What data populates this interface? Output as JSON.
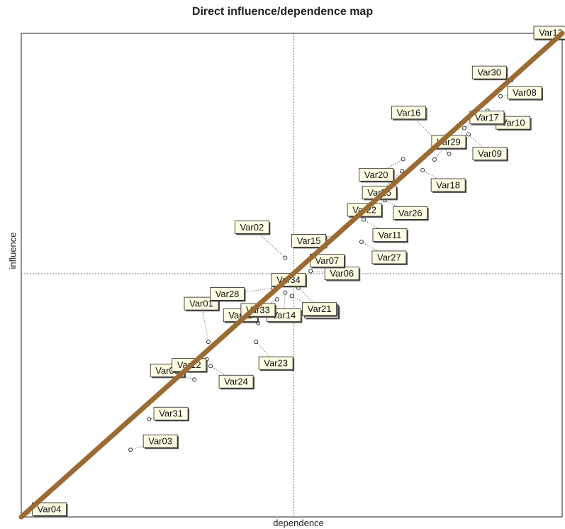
{
  "chart_data": {
    "type": "scatter",
    "title": "Direct influence/dependence map",
    "xlabel": "dependence",
    "ylabel": "influence",
    "xlim": [
      0,
      100
    ],
    "ylim": [
      0,
      100
    ],
    "grid": false,
    "quadrant_lines": {
      "x": 50.4,
      "y": 50.3
    },
    "trend_line": {
      "color": "#9b6b34",
      "from": [
        0,
        0
      ],
      "to": [
        100,
        100
      ]
    },
    "points": [
      {
        "name": "Var01",
        "x": 34.6,
        "y": 36.2
      },
      {
        "name": "Var02",
        "x": 48.8,
        "y": 53.6
      },
      {
        "name": "Var03",
        "x": 20.2,
        "y": 13.9
      },
      {
        "name": "Var04",
        "x": 0.2,
        "y": 0.3
      },
      {
        "name": "Var05",
        "x": 32.0,
        "y": 28.4
      },
      {
        "name": "Var06",
        "x": 53.5,
        "y": 50.8
      },
      {
        "name": "Var08",
        "x": 88.6,
        "y": 87.0
      },
      {
        "name": "Var09",
        "x": 82.7,
        "y": 79.1
      },
      {
        "name": "Var10",
        "x": 86.2,
        "y": 84.0
      },
      {
        "name": "Var11",
        "x": 63.3,
        "y": 61.5
      },
      {
        "name": "Var12",
        "x": 34.3,
        "y": 32.6
      },
      {
        "name": "Var13",
        "x": 100,
        "y": 100
      },
      {
        "name": "Var14",
        "x": 48.8,
        "y": 46.4
      },
      {
        "name": "Var15",
        "x": 58.4,
        "y": 58.3
      },
      {
        "name": "Var16",
        "x": 79.1,
        "y": 75.1
      },
      {
        "name": "Var17",
        "x": 81.9,
        "y": 80.4
      },
      {
        "name": "Var18",
        "x": 74.2,
        "y": 71.7
      },
      {
        "name": "Var19",
        "x": 50.0,
        "y": 45.7
      },
      {
        "name": "Var20",
        "x": 70.6,
        "y": 74.0
      },
      {
        "name": "Var21",
        "x": 51.2,
        "y": 47.4
      },
      {
        "name": "Var22",
        "x": 66.2,
        "y": 63.2
      },
      {
        "name": "Var23",
        "x": 43.4,
        "y": 36.2
      },
      {
        "name": "Var24",
        "x": 35.0,
        "y": 31.2
      },
      {
        "name": "Var25",
        "x": 70.4,
        "y": 71.5
      },
      {
        "name": "Var26",
        "x": 67.2,
        "y": 65.5
      },
      {
        "name": "Var27",
        "x": 62.9,
        "y": 56.9
      },
      {
        "name": "Var28",
        "x": 46.6,
        "y": 47.3
      },
      {
        "name": "Var29",
        "x": 76.4,
        "y": 73.9
      },
      {
        "name": "Var30",
        "x": 90.6,
        "y": 90.3
      },
      {
        "name": "Var31",
        "x": 23.6,
        "y": 20.2
      },
      {
        "name": "Var32",
        "x": 43.8,
        "y": 40.1
      },
      {
        "name": "Var33",
        "x": 47.3,
        "y": 45.0
      },
      {
        "name": "Var07",
        "x": 56.8,
        "y": 53.9
      },
      {
        "name": "Var34",
        "x": 50.2,
        "y": 50.1
      }
    ]
  }
}
